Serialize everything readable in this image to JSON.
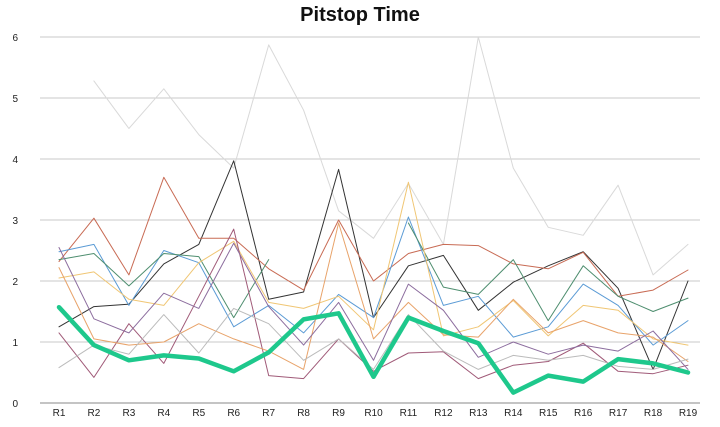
{
  "chart_data": {
    "type": "line",
    "title": "Pitstop Time",
    "xlabel": "",
    "ylabel": "",
    "ylim": [
      0,
      6
    ],
    "yticks": [
      "0",
      "1",
      "2",
      "3",
      "4",
      "5",
      "6"
    ],
    "grid": true,
    "categories": [
      "R1",
      "R2",
      "R3",
      "R4",
      "R5",
      "R6",
      "R7",
      "R8",
      "R9",
      "R10",
      "R11",
      "R12",
      "R13",
      "R14",
      "R15",
      "R16",
      "R17",
      "R18",
      "R19"
    ],
    "series": [
      {
        "color": "#1ec88c",
        "values": [
          1.57,
          0.95,
          0.7,
          0.78,
          0.73,
          0.52,
          0.83,
          1.37,
          1.47,
          0.43,
          1.4,
          1.18,
          0.98,
          0.17,
          0.45,
          0.35,
          0.72,
          0.65,
          0.5
        ],
        "highlight": true
      },
      {
        "color": "#d9d9d9",
        "values": [
          null,
          5.28,
          4.5,
          5.15,
          4.4,
          3.85,
          5.87,
          4.8,
          3.15,
          2.7,
          3.6,
          2.6,
          6.0,
          3.85,
          2.88,
          2.75,
          3.57,
          2.1,
          2.6
        ]
      },
      {
        "color": "#333333",
        "values": [
          1.25,
          1.58,
          1.62,
          2.28,
          2.6,
          3.97,
          1.7,
          1.82,
          3.83,
          1.4,
          2.25,
          2.42,
          1.52,
          1.98,
          2.25,
          2.48,
          1.88,
          0.55,
          2.0
        ]
      },
      {
        "color": "#c86b54",
        "values": [
          2.32,
          3.03,
          2.1,
          3.7,
          2.7,
          2.7,
          2.2,
          1.85,
          3.0,
          2.0,
          2.45,
          2.6,
          2.58,
          2.28,
          2.2,
          2.47,
          1.75,
          1.85,
          2.18
        ]
      },
      {
        "color": "#5b9bd5",
        "values": [
          2.48,
          2.6,
          1.6,
          2.5,
          2.3,
          1.25,
          1.6,
          1.15,
          1.78,
          1.4,
          3.05,
          1.6,
          1.75,
          1.08,
          1.25,
          1.95,
          1.6,
          0.95,
          1.35
        ]
      },
      {
        "color": "#4e8e6f",
        "values": [
          2.35,
          2.45,
          1.92,
          2.45,
          2.4,
          1.4,
          2.35,
          null,
          null,
          null,
          2.95,
          1.9,
          1.78,
          2.35,
          1.35,
          2.25,
          1.75,
          1.5,
          1.72
        ]
      },
      {
        "color": "#f0c674",
        "values": [
          2.05,
          2.15,
          1.7,
          1.6,
          2.3,
          2.65,
          1.65,
          1.55,
          1.75,
          1.2,
          3.62,
          1.1,
          1.25,
          1.68,
          1.1,
          1.6,
          1.52,
          1.05,
          0.95
        ]
      },
      {
        "color": "#a05a78",
        "values": [
          1.15,
          0.42,
          1.3,
          0.65,
          1.75,
          2.85,
          0.45,
          0.4,
          1.05,
          0.52,
          0.82,
          0.84,
          0.4,
          0.62,
          0.68,
          0.98,
          0.52,
          0.48,
          0.62
        ]
      },
      {
        "color": "#e8a36a",
        "values": [
          2.22,
          1.05,
          0.95,
          1.0,
          1.3,
          1.05,
          0.85,
          0.55,
          2.95,
          1.05,
          1.65,
          1.12,
          1.08,
          1.7,
          1.15,
          1.35,
          1.15,
          1.08,
          0.68
        ]
      },
      {
        "color": "#8c6d9e",
        "values": [
          2.55,
          1.38,
          1.15,
          1.8,
          1.55,
          2.62,
          1.58,
          0.95,
          1.65,
          0.7,
          1.95,
          1.52,
          0.75,
          1.0,
          0.8,
          0.95,
          0.85,
          1.18,
          0.55
        ]
      },
      {
        "color": "#bbbbbb",
        "values": [
          0.58,
          0.95,
          0.8,
          1.45,
          0.82,
          1.55,
          1.3,
          0.7,
          1.05,
          0.55,
          1.45,
          0.85,
          0.55,
          0.78,
          0.7,
          0.78,
          0.6,
          0.55,
          0.72
        ]
      }
    ]
  }
}
